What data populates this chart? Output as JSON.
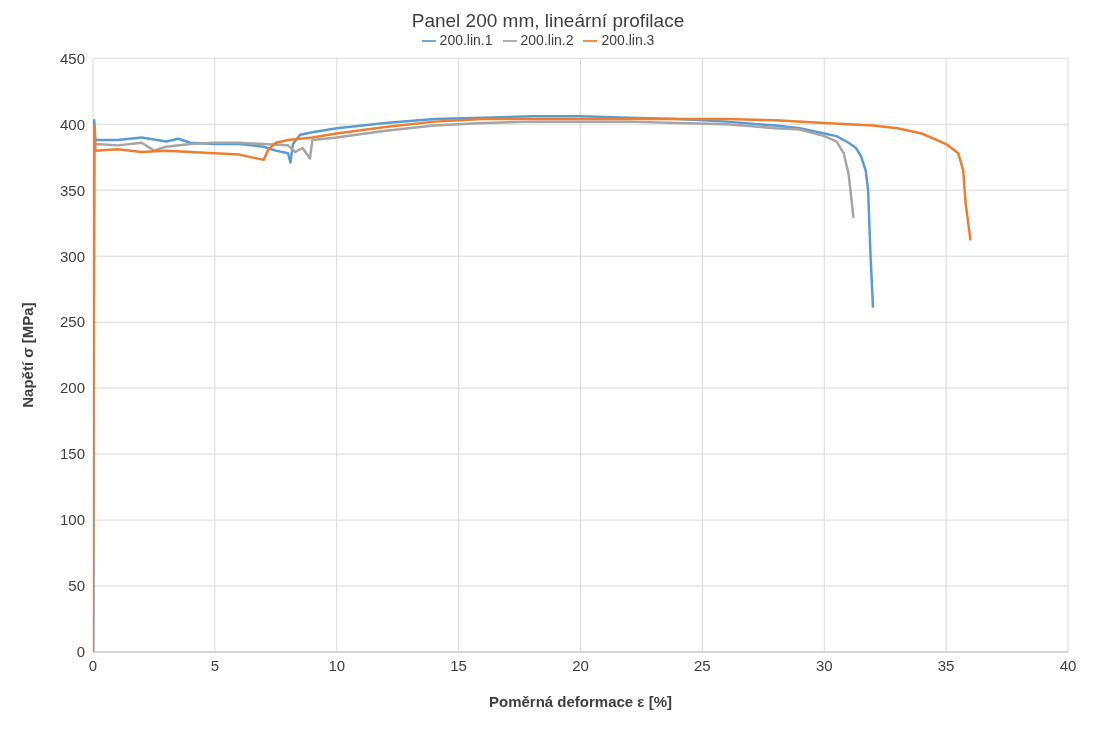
{
  "chart_data": {
    "type": "line",
    "title": "Panel 200 mm, lineární profilace",
    "xlabel": "Poměrná deformace ε [%]",
    "ylabel": "Napětí σ [MPa]",
    "xlim": [
      0,
      40
    ],
    "xticks": [
      0,
      5,
      10,
      15,
      20,
      25,
      30,
      35,
      40
    ],
    "ylim": [
      0,
      450
    ],
    "yticks": [
      0,
      50,
      100,
      150,
      200,
      250,
      300,
      350,
      400,
      450
    ],
    "grid": true,
    "legend": "top",
    "marker": "none",
    "line_style": "solid",
    "series": [
      {
        "name": "200.lin.1",
        "color": "#5b9bd5",
        "x": [
          0,
          0.05,
          0.1,
          1,
          2,
          3,
          3.5,
          4,
          5,
          6,
          7,
          7.5,
          8,
          8.1,
          8.2,
          8.5,
          9,
          10,
          12,
          14,
          16,
          18,
          20,
          22,
          24,
          26,
          28,
          29,
          30,
          30.5,
          31,
          31.3,
          31.5,
          31.7,
          31.8,
          31.9,
          32
        ],
        "values": [
          0,
          403,
          388,
          388,
          390,
          387,
          389,
          386,
          385,
          385,
          383,
          380,
          378,
          371,
          385,
          392,
          394,
          397,
          401,
          404,
          405,
          406,
          406,
          405,
          404,
          402,
          399,
          397,
          393,
          391,
          386,
          382,
          376,
          365,
          350,
          300,
          261
        ]
      },
      {
        "name": "200.lin.2",
        "color": "#a5a5a5",
        "x": [
          0,
          0.05,
          0.1,
          1,
          2,
          2.5,
          3,
          4,
          5,
          6,
          7,
          8,
          8.3,
          8.6,
          8.9,
          9,
          10,
          12,
          14,
          16,
          18,
          20,
          22,
          24,
          26,
          28,
          29,
          30,
          30.5,
          30.8,
          31,
          31.2
        ],
        "values": [
          0,
          395,
          385,
          384,
          386,
          380,
          383,
          385,
          386,
          386,
          385,
          384,
          379,
          382,
          374,
          388,
          390,
          395,
          399,
          401,
          402,
          402,
          402,
          401,
          400,
          397,
          396,
          391,
          387,
          378,
          362,
          329
        ]
      },
      {
        "name": "200.lin.3",
        "color": "#ed7d31",
        "x": [
          0,
          0.05,
          0.1,
          1,
          2,
          3,
          4,
          5,
          6,
          7,
          7.2,
          7.5,
          8,
          9,
          10,
          12,
          14,
          16,
          18,
          20,
          22,
          24,
          26,
          28,
          30,
          31,
          32,
          33,
          34,
          35,
          35.5,
          35.7,
          35.8,
          36
        ],
        "values": [
          0,
          398,
          380,
          381,
          379,
          380,
          379,
          378,
          377,
          373,
          381,
          386,
          388,
          390,
          393,
          398,
          402,
          404,
          404,
          404,
          404,
          404,
          404,
          403,
          401,
          400,
          399,
          397,
          393,
          385,
          378,
          365,
          340,
          312
        ]
      }
    ]
  }
}
